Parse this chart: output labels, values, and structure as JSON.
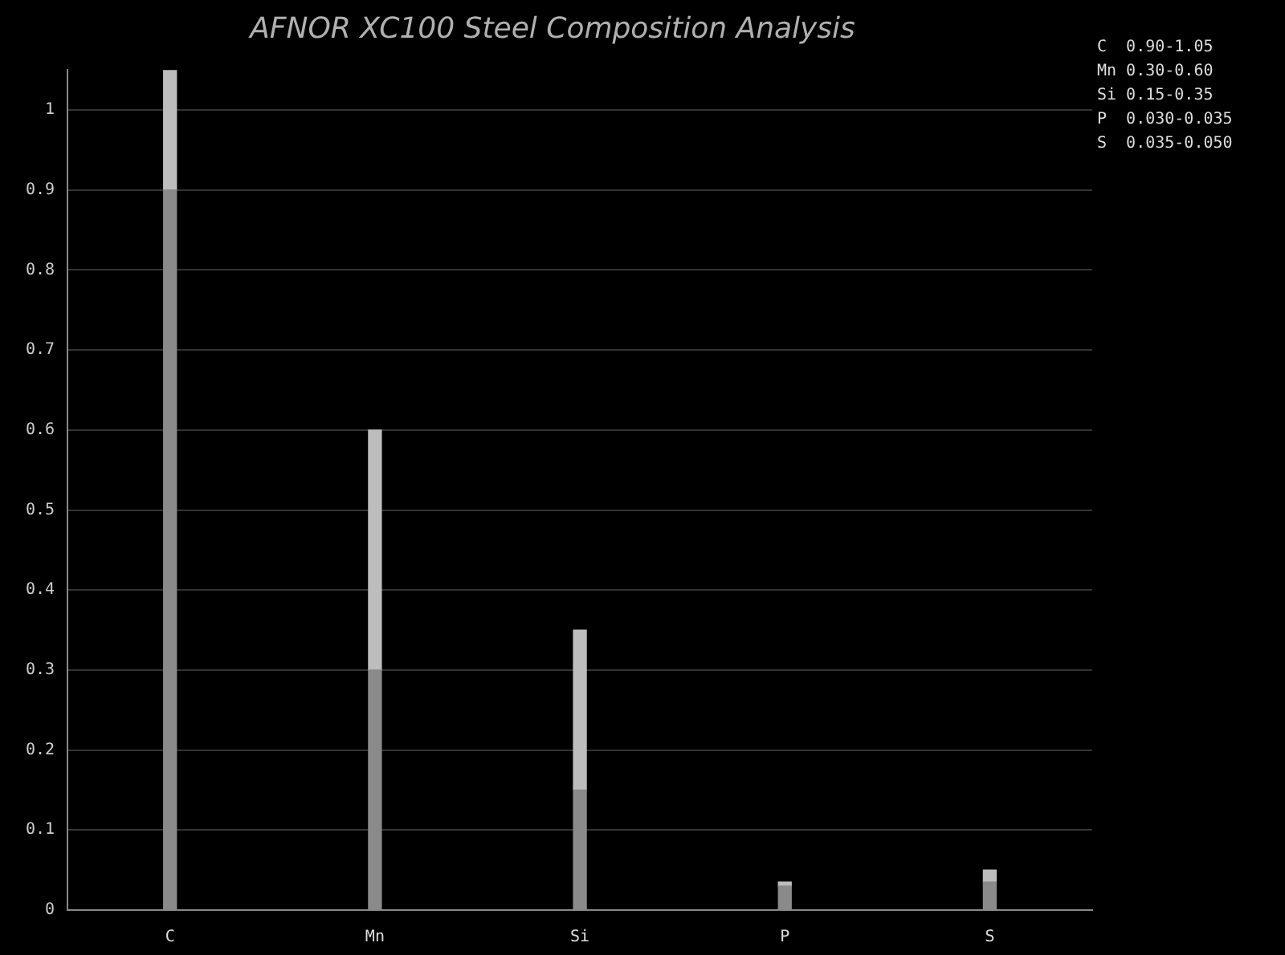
{
  "chart_data": {
    "type": "bar",
    "title": "AFNOR XC100 Steel Composition Analysis",
    "categories": [
      "C",
      "Mn",
      "Si",
      "P",
      "S"
    ],
    "stacked": true,
    "series": [
      {
        "color": "#8a8a8a",
        "values": [
          0.9,
          0.3,
          0.15,
          0.03,
          0.035
        ]
      },
      {
        "color": "#bdbdbd",
        "values": [
          0.15,
          0.3,
          0.2,
          0.005,
          0.015
        ]
      }
    ],
    "ylim": [
      0,
      1.05
    ],
    "yticks": [
      0,
      0.1,
      0.2,
      0.3,
      0.4,
      0.5,
      0.6,
      0.7,
      0.8,
      0.9,
      1
    ],
    "grid": "y",
    "legend": false,
    "annotations": [
      "C  0.90-1.05",
      "Mn 0.30-0.60",
      "Si 0.15-0.35",
      "P  0.030-0.035",
      "S  0.035-0.050"
    ]
  }
}
